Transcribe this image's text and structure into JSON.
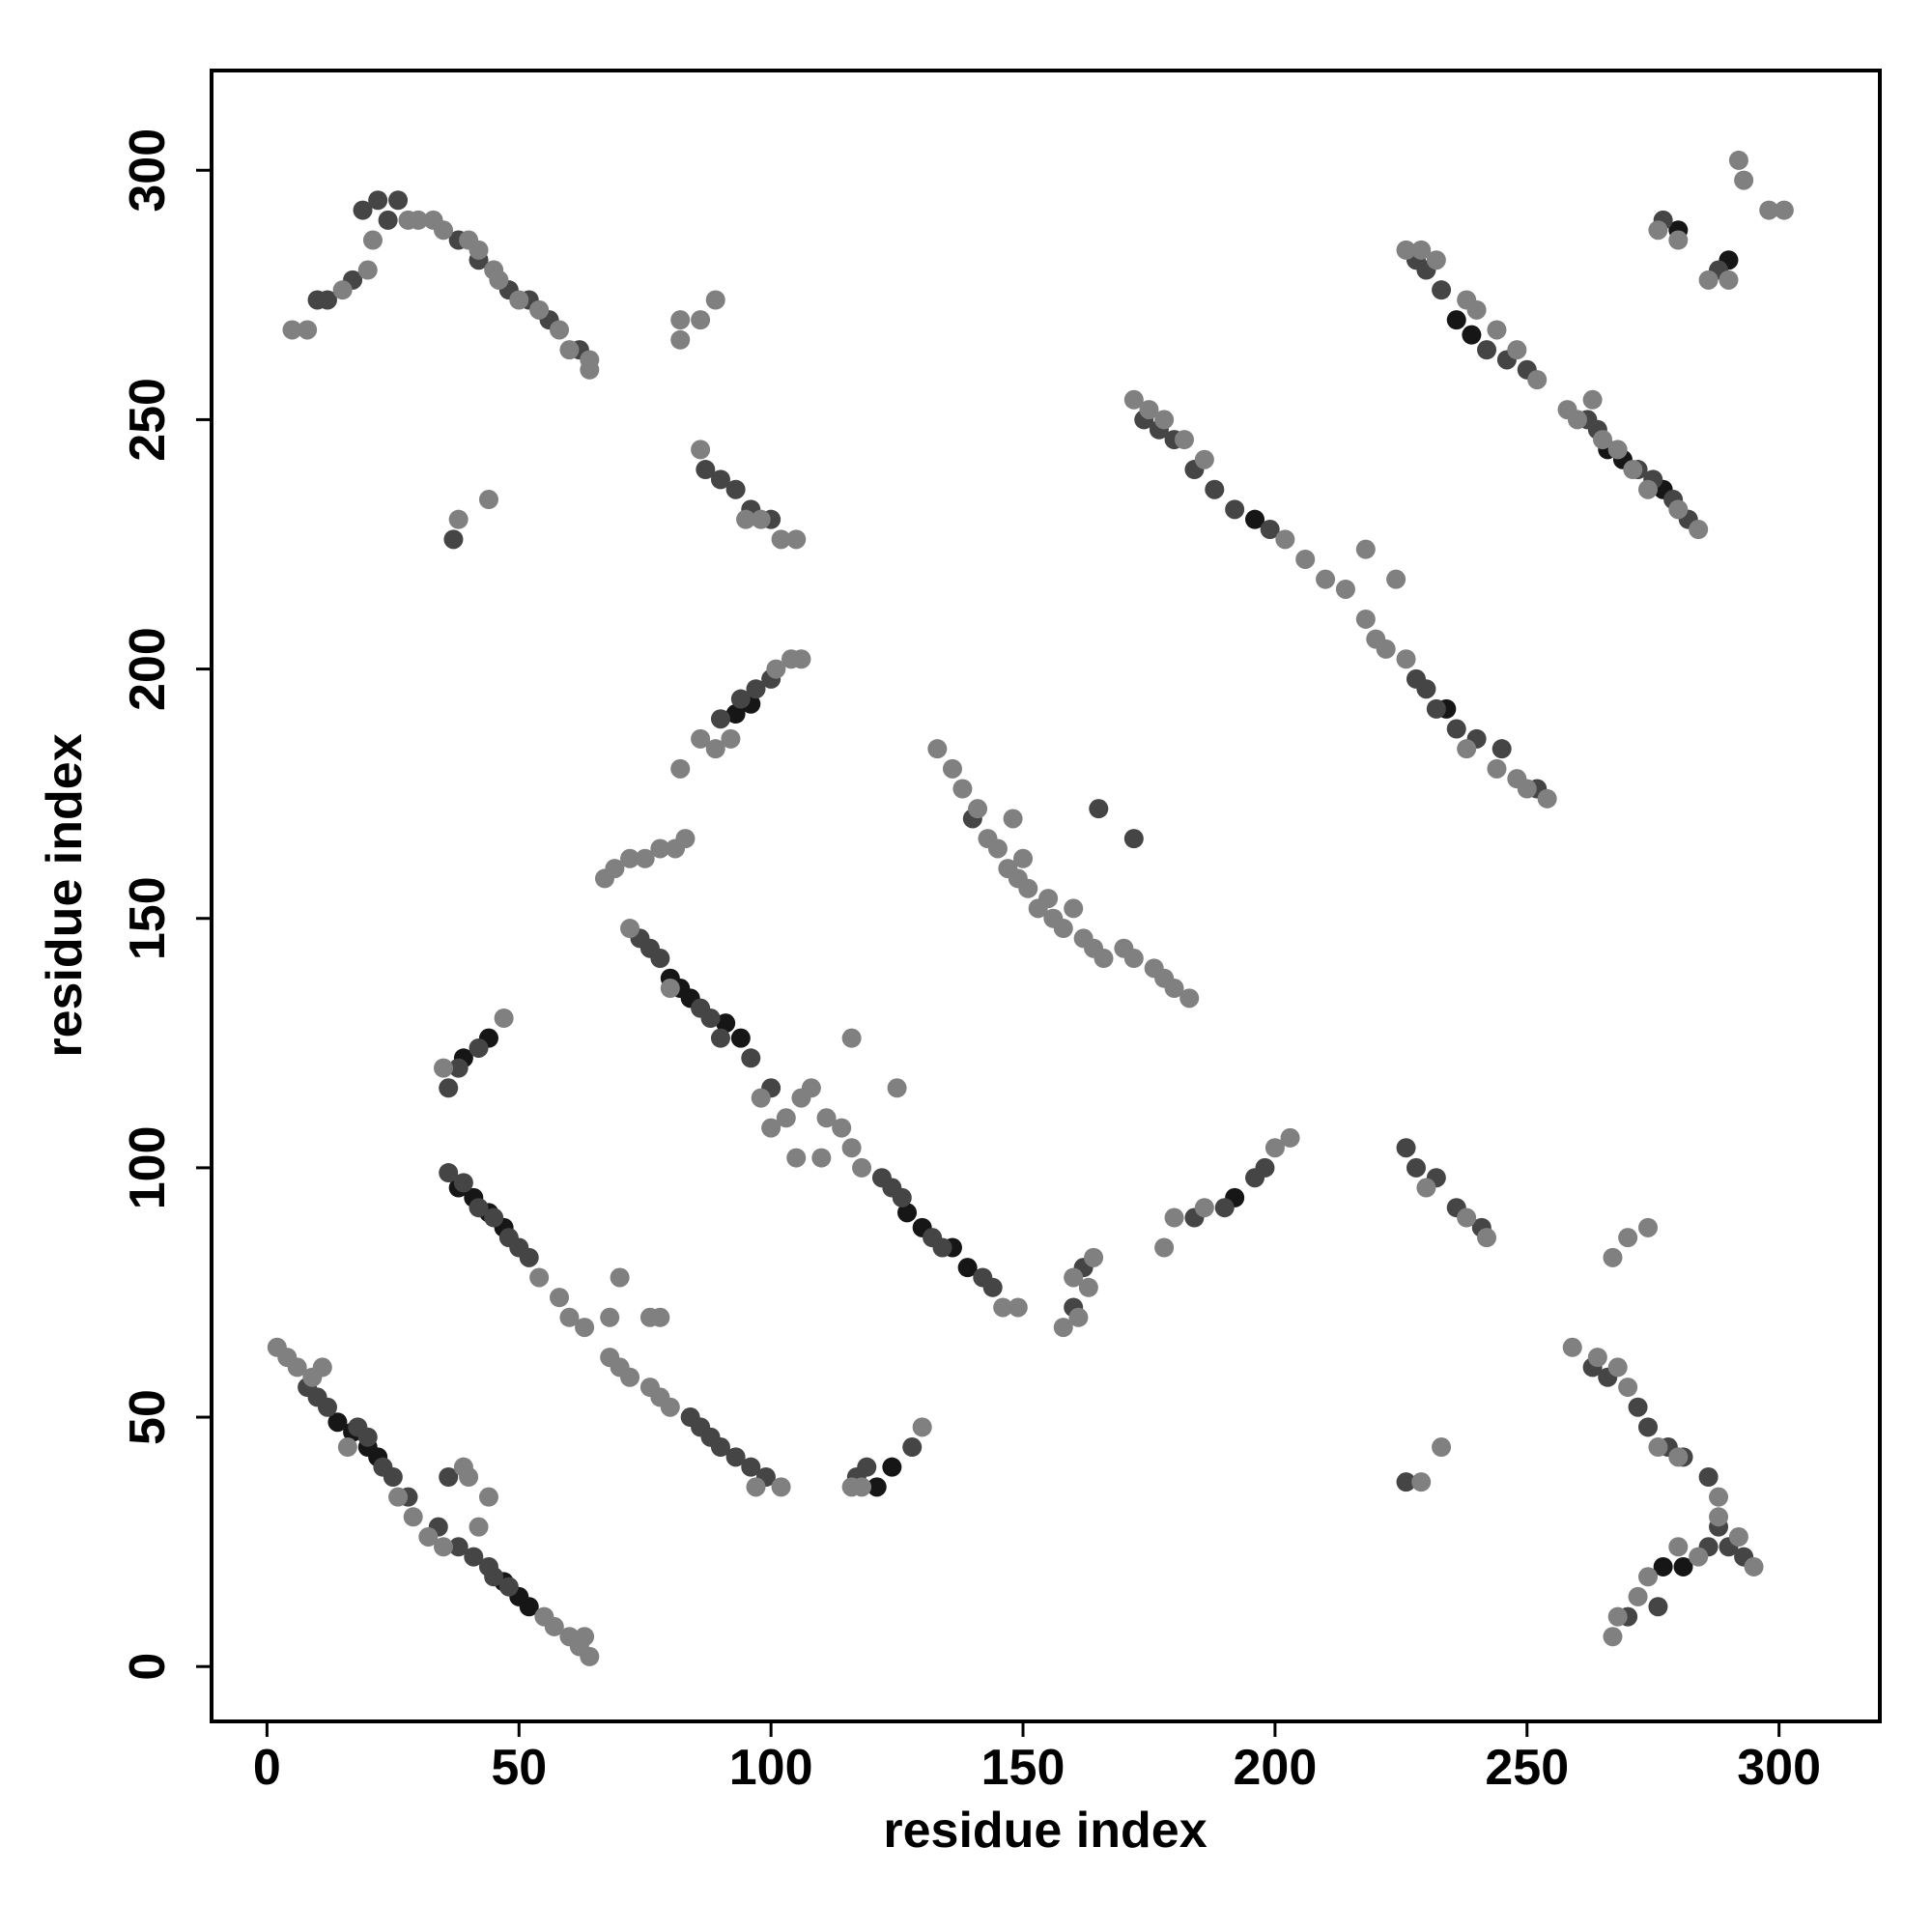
{
  "chart_data": {
    "type": "scatter",
    "xlabel": "residue index",
    "ylabel": "residue index",
    "xlim": [
      -11,
      320
    ],
    "ylim": [
      -11,
      320
    ],
    "xticks": [
      0,
      50,
      100,
      150,
      200,
      250,
      300
    ],
    "yticks": [
      0,
      50,
      100,
      150,
      200,
      250,
      300
    ],
    "series": [
      {
        "color": "#161616",
        "x": [
          14,
          17,
          20,
          22,
          47,
          50,
          52,
          38,
          41,
          44,
          47,
          80,
          82,
          84,
          91,
          94,
          127,
          130,
          136,
          139,
          196,
          234,
          236,
          239,
          266,
          269,
          277,
          93,
          96,
          192,
          121,
          124,
          281,
          277,
          280,
          290,
          39,
          44
        ],
        "y": [
          49,
          47,
          44,
          42,
          17,
          14,
          12,
          96,
          94,
          91,
          88,
          138,
          136,
          134,
          129,
          126,
          91,
          88,
          84,
          80,
          230,
          192,
          270,
          267,
          244,
          242,
          236,
          191,
          193,
          94,
          36,
          40,
          20,
          20,
          288,
          282,
          122,
          126
        ]
      },
      {
        "color": "#454545",
        "x": [
          8,
          10,
          12,
          18,
          20,
          23,
          25,
          34,
          38,
          41,
          44,
          45,
          48,
          36,
          39,
          42,
          45,
          48,
          50,
          52,
          84,
          86,
          88,
          90,
          93,
          96,
          99,
          74,
          76,
          78,
          86,
          88,
          90,
          96,
          100,
          122,
          124,
          126,
          132,
          134,
          142,
          144,
          174,
          177,
          180,
          184,
          188,
          192,
          199,
          228,
          230,
          232,
          236,
          240,
          245,
          252,
          228,
          230,
          233,
          242,
          246,
          250,
          262,
          264,
          272,
          275,
          279,
          282,
          10,
          12,
          17,
          19,
          22,
          24,
          26,
          38,
          42,
          48,
          52,
          56,
          62,
          87,
          90,
          93,
          96,
          100,
          90,
          94,
          97,
          100,
          140,
          36,
          38,
          42,
          117,
          119,
          128,
          160,
          162,
          184,
          190,
          196,
          198,
          226,
          228,
          232,
          236,
          241,
          263,
          266,
          272,
          274,
          278,
          281,
          286,
          288,
          290,
          293,
          270,
          276,
          286,
          277,
          288,
          37,
          165,
          172,
          226,
          36,
          28
        ],
        "y": [
          56,
          54,
          52,
          48,
          46,
          40,
          38,
          28,
          24,
          22,
          20,
          18,
          16,
          99,
          97,
          92,
          90,
          86,
          84,
          82,
          50,
          48,
          46,
          44,
          42,
          40,
          38,
          146,
          144,
          142,
          132,
          130,
          126,
          122,
          116,
          98,
          96,
          94,
          86,
          84,
          78,
          76,
          250,
          248,
          246,
          240,
          236,
          232,
          228,
          198,
          196,
          192,
          188,
          186,
          184,
          176,
          282,
          280,
          276,
          264,
          262,
          260,
          250,
          248,
          240,
          238,
          234,
          230,
          274,
          274,
          278,
          292,
          294,
          290,
          294,
          286,
          282,
          276,
          274,
          270,
          264,
          240,
          238,
          236,
          232,
          230,
          190,
          194,
          196,
          198,
          170,
          116,
          120,
          124,
          38,
          40,
          44,
          72,
          80,
          90,
          92,
          98,
          100,
          104,
          100,
          98,
          92,
          88,
          60,
          58,
          52,
          48,
          44,
          42,
          38,
          28,
          24,
          22,
          10,
          12,
          24,
          290,
          280,
          226,
          172,
          166,
          37,
          38,
          34
        ]
      },
      {
        "color": "#808080",
        "x": [
          2,
          4,
          6,
          9,
          11,
          16,
          26,
          29,
          32,
          35,
          42,
          55,
          57,
          60,
          62,
          64,
          63,
          54,
          58,
          60,
          63,
          68,
          70,
          72,
          76,
          78,
          80,
          102,
          97,
          72,
          80,
          98,
          100,
          103,
          106,
          108,
          111,
          114,
          116,
          110,
          105,
          118,
          125,
          116,
          68,
          70,
          76,
          78,
          146,
          149,
          172,
          175,
          178,
          182,
          186,
          202,
          206,
          210,
          214,
          218,
          220,
          222,
          226,
          238,
          244,
          248,
          250,
          254,
          218,
          224,
          226,
          229,
          232,
          238,
          240,
          244,
          248,
          252,
          258,
          260,
          263,
          265,
          268,
          271,
          274,
          280,
          284,
          5,
          8,
          15,
          20,
          21,
          28,
          30,
          33,
          35,
          40,
          45,
          50,
          54,
          58,
          60,
          64,
          64,
          42,
          46,
          86,
          95,
          98,
          102,
          105,
          86,
          89,
          92,
          101,
          104,
          106,
          82,
          133,
          136,
          138,
          141,
          143,
          145,
          147,
          149,
          151,
          150,
          153,
          156,
          158,
          160,
          162,
          164,
          166,
          170,
          172,
          176,
          178,
          180,
          183,
          148,
          155,
          67,
          69,
          72,
          75,
          78,
          81,
          83,
          35,
          47,
          116,
          118,
          130,
          158,
          161,
          163,
          164,
          160,
          178,
          180,
          186,
          200,
          203,
          230,
          238,
          242,
          259,
          264,
          268,
          270,
          276,
          280,
          288,
          288,
          292,
          295,
          267,
          268,
          272,
          274,
          280,
          284,
          276,
          280,
          286,
          290,
          292,
          293,
          298,
          301,
          44,
          82,
          82,
          86,
          89,
          38,
          44,
          39,
          229,
          233,
          267,
          270,
          274,
          40
        ],
        "y": [
          64,
          62,
          60,
          58,
          60,
          44,
          34,
          30,
          26,
          24,
          28,
          10,
          8,
          6,
          4,
          2,
          6,
          78,
          74,
          70,
          68,
          62,
          60,
          58,
          56,
          54,
          52,
          36,
          36,
          148,
          136,
          114,
          108,
          110,
          114,
          116,
          110,
          108,
          104,
          102,
          102,
          100,
          116,
          126,
          70,
          78,
          70,
          70,
          72,
          72,
          254,
          252,
          250,
          246,
          242,
          226,
          222,
          218,
          216,
          210,
          206,
          204,
          202,
          184,
          180,
          178,
          176,
          174,
          224,
          218,
          284,
          284,
          282,
          274,
          272,
          268,
          264,
          258,
          252,
          250,
          254,
          246,
          244,
          240,
          236,
          232,
          228,
          268,
          268,
          276,
          280,
          286,
          290,
          290,
          290,
          288,
          286,
          280,
          274,
          272,
          268,
          264,
          262,
          260,
          284,
          278,
          244,
          230,
          230,
          226,
          226,
          186,
          184,
          186,
          200,
          202,
          202,
          180,
          184,
          180,
          176,
          172,
          166,
          164,
          160,
          158,
          156,
          162,
          152,
          150,
          148,
          152,
          146,
          144,
          142,
          144,
          142,
          140,
          138,
          136,
          134,
          170,
          154,
          158,
          160,
          162,
          162,
          164,
          164,
          166,
          120,
          130,
          36,
          36,
          48,
          68,
          70,
          76,
          82,
          78,
          84,
          90,
          92,
          104,
          106,
          96,
          90,
          86,
          64,
          62,
          60,
          56,
          44,
          42,
          34,
          30,
          26,
          20,
          6,
          10,
          14,
          18,
          24,
          22,
          288,
          286,
          278,
          278,
          302,
          298,
          292,
          292,
          234,
          266,
          270,
          270,
          274,
          230,
          34,
          40,
          37,
          44,
          82,
          86,
          88,
          38
        ]
      }
    ]
  }
}
